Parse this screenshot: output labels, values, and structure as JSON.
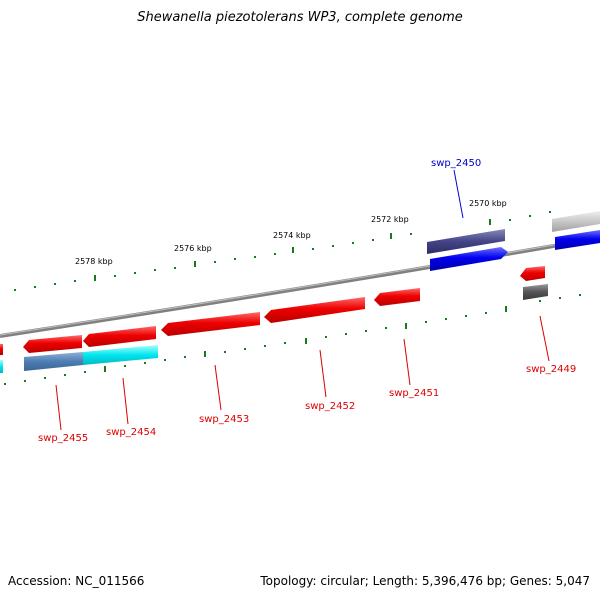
{
  "title": "Shewanella piezotolerans WP3, complete genome",
  "accession": "Accession: NC_011566",
  "summary": "Topology: circular; Length: 5,396,476 bp; Genes: 5,047",
  "kbp_ticks": [
    "2570 kbp",
    "2572 kbp",
    "2574 kbp",
    "2576 kbp",
    "2578 kbp"
  ],
  "gene_labels": [
    "swp_2449",
    "swp_2450",
    "swp_2451",
    "swp_2452",
    "swp_2453",
    "swp_2454",
    "swp_2455"
  ],
  "colors": {
    "forward_cds": "#0000ee",
    "reverse_cds": "#ee0000",
    "backbone": "#808080",
    "tick": "#1a7a1a"
  }
}
